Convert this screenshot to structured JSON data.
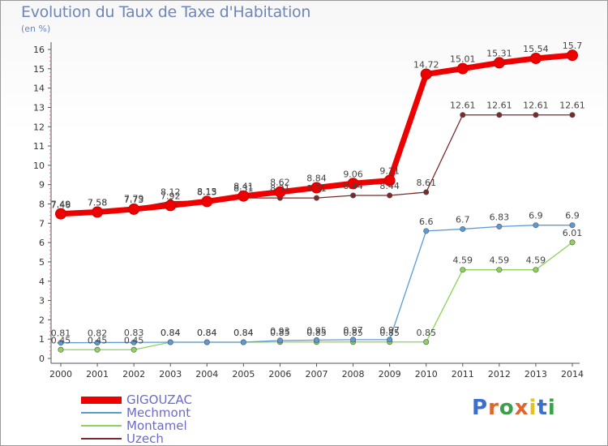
{
  "header": {
    "title": "Evolution du Taux de Taxe d'Habitation",
    "unit": "(en %)"
  },
  "logo": {
    "text": "Proxiti",
    "letter_colors": [
      "#3a6fcf",
      "#e0652b",
      "#3aa04a",
      "#e0652b",
      "#e3c21e",
      "#3a6fcf",
      "#3aa04a"
    ]
  },
  "chart_data": {
    "type": "line",
    "title": "Evolution du Taux de Taxe d'Habitation",
    "ylabel": "(en %)",
    "xlabel": "",
    "x": [
      "2000",
      "2001",
      "2002",
      "2003",
      "2004",
      "2005",
      "2006",
      "2007",
      "2008",
      "2009",
      "2010",
      "2011",
      "2012",
      "2013",
      "2014"
    ],
    "ylim": [
      0,
      16
    ],
    "yticks": [
      "0",
      "1",
      "2",
      "3",
      "4",
      "5",
      "6",
      "7",
      "8",
      "9",
      "10",
      "11",
      "12",
      "13",
      "14",
      "15",
      "16"
    ],
    "grid": false,
    "legend_position": "bottom-left",
    "series": [
      {
        "name": "GIGOUZAC",
        "color": "#ee0000",
        "values": [
          7.49,
          7.58,
          7.73,
          7.92,
          8.13,
          8.41,
          8.62,
          8.84,
          9.06,
          9.21,
          14.72,
          15.01,
          15.31,
          15.54,
          15.7
        ],
        "labels": [
          "7.49",
          "7.58",
          "7.73",
          "7.92",
          "8.13",
          "8.41",
          "8.62",
          "8.84",
          "9.06",
          "9.21",
          "14.72",
          "15.01",
          "15.31",
          "15.54",
          "15.7"
        ]
      },
      {
        "name": "Mechmont",
        "color": "#5b9bd5",
        "values": [
          0.81,
          0.82,
          0.83,
          0.84,
          0.84,
          0.84,
          0.93,
          0.95,
          0.97,
          0.97,
          6.6,
          6.7,
          6.83,
          6.9,
          6.9
        ],
        "labels": [
          "0.81",
          "0.82",
          "0.83",
          "0.84",
          "0.84",
          "0.84",
          "0.93",
          "0.95",
          "0.97",
          "0.97",
          "6.6",
          "6.7",
          "6.83",
          "6.9",
          "6.9"
        ]
      },
      {
        "name": "Montamel",
        "color": "#8bd35a",
        "values": [
          0.45,
          0.45,
          0.45,
          0.84,
          0.84,
          0.84,
          0.85,
          0.85,
          0.85,
          0.85,
          0.85,
          4.59,
          4.59,
          4.59,
          6.01
        ],
        "labels": [
          "0.45",
          "0.45",
          "0.45",
          "0.84",
          "0.84",
          "0.84",
          "0.85",
          "0.85",
          "0.85",
          "0.85",
          "0.85",
          "4.59",
          "4.59",
          "4.59",
          "6.01"
        ]
      },
      {
        "name": "Uzech",
        "color": "#7a2a2a",
        "values": [
          7.46,
          7.58,
          7.79,
          8.12,
          8.15,
          8.31,
          8.31,
          8.31,
          8.44,
          8.44,
          8.61,
          12.61,
          12.61,
          12.61,
          12.61
        ],
        "labels": [
          "7.46",
          "7.58",
          "7.79",
          "8.12",
          "8.15",
          "8.31",
          "8.31",
          "8.31",
          "8.44",
          "8.44",
          "8.61",
          "12.61",
          "12.61",
          "12.61",
          "12.61"
        ]
      }
    ]
  }
}
